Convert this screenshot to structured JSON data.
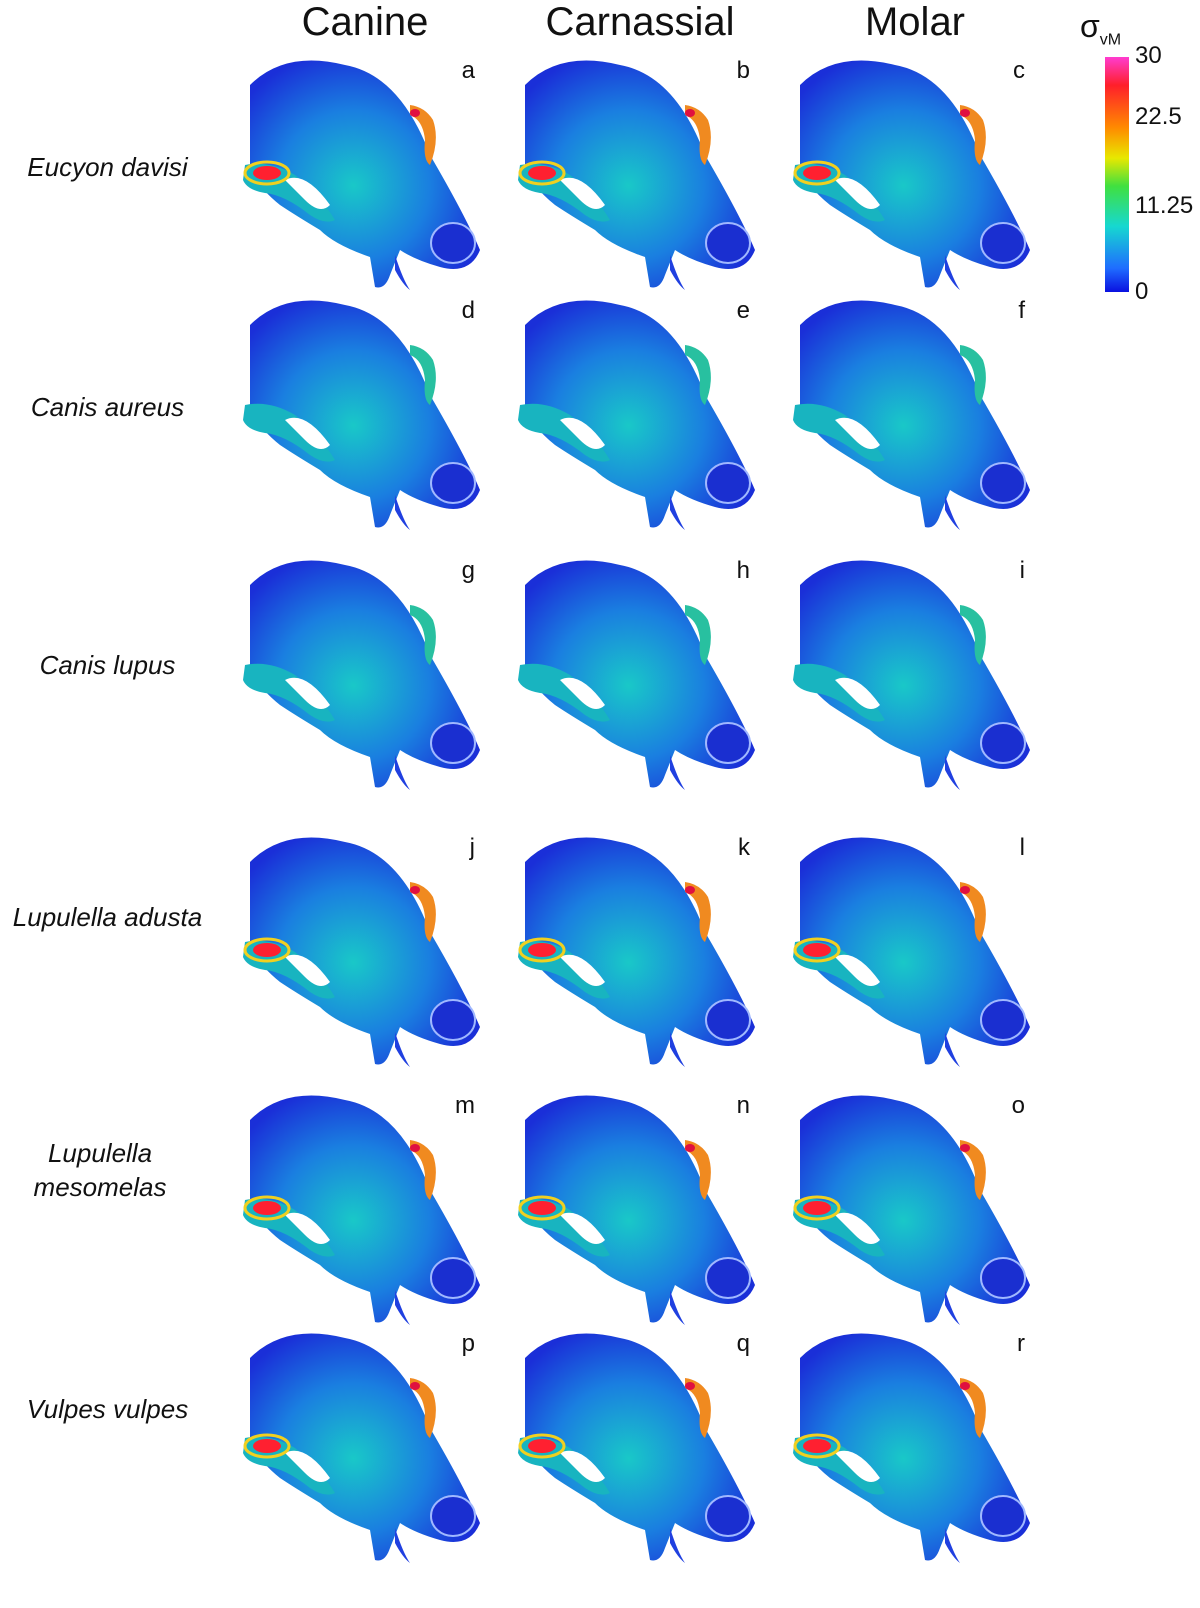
{
  "columns": [
    "Canine",
    "Carnassial",
    "Molar"
  ],
  "rows": [
    "Eucyon davisi",
    "Canis aureus",
    "Canis lupus",
    "Lupulella adusta",
    "Lupulella mesomelas",
    "Vulpes vulpes"
  ],
  "panels": [
    "a",
    "b",
    "c",
    "d",
    "e",
    "f",
    "g",
    "h",
    "i",
    "j",
    "k",
    "l",
    "m",
    "n",
    "o",
    "p",
    "q",
    "r"
  ],
  "scale": {
    "symbol": "σ",
    "subscript": "vM",
    "ticks": [
      "30",
      "22.5",
      "11.25",
      "0"
    ]
  }
}
